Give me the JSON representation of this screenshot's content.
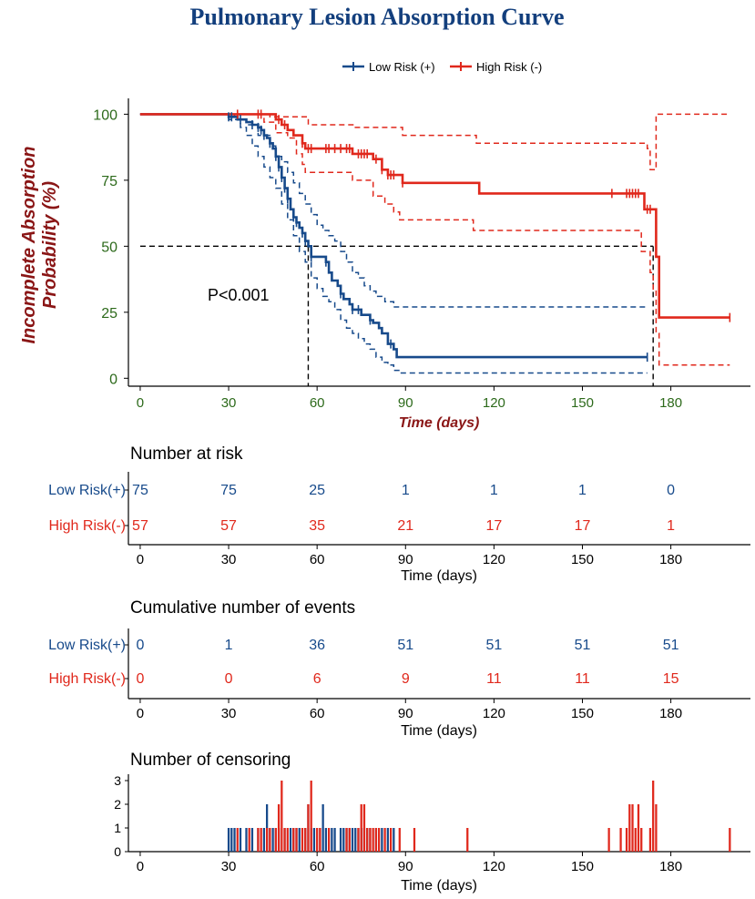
{
  "chart_data": {
    "type": "kaplan-meier",
    "title": "Pulmonary Lesion Absorption Curve",
    "legend": {
      "placement": "top",
      "entries": [
        "Low Risk (+)",
        "High Risk (-)"
      ]
    },
    "colors": {
      "low": "#174a8b",
      "high": "#e0281c",
      "title": "#133f7d",
      "ylabel": "#8a1616",
      "xlabel": "#8a1616",
      "ytick": "#2d6a1b",
      "xtick": "#2d6a1b"
    },
    "main_plot": {
      "xlabel": "Time (days)",
      "ylabel_line1": "Incomplete Absorption",
      "ylabel_line2": "Probability (%)",
      "xlim": [
        -4,
        207
      ],
      "ylim": [
        -3,
        106
      ],
      "xticks": [
        0,
        30,
        60,
        90,
        120,
        150,
        180
      ],
      "yticks": [
        0,
        25,
        50,
        75,
        100
      ],
      "xtick_labels": [
        "0",
        "30",
        "60",
        "90",
        "120",
        "150",
        "180"
      ],
      "ytick_labels": [
        "0",
        "25",
        "50",
        "75",
        "100"
      ],
      "annotation": "P<0.001",
      "median_line": {
        "y": 50,
        "x_low": 57,
        "x_high": 174
      },
      "series": [
        {
          "name": "Low Risk (+)",
          "key": "low",
          "survival": [
            [
              0,
              100
            ],
            [
              28,
              100
            ],
            [
              30,
              99
            ],
            [
              33,
              98
            ],
            [
              36,
              97
            ],
            [
              38,
              96
            ],
            [
              40,
              95
            ],
            [
              41,
              94
            ],
            [
              42,
              92
            ],
            [
              43,
              91
            ],
            [
              44,
              89
            ],
            [
              45,
              87
            ],
            [
              46,
              84
            ],
            [
              47,
              80
            ],
            [
              48,
              76
            ],
            [
              49,
              72
            ],
            [
              50,
              68
            ],
            [
              51,
              64
            ],
            [
              52,
              61
            ],
            [
              53,
              59
            ],
            [
              54,
              57
            ],
            [
              55,
              55
            ],
            [
              56,
              52
            ],
            [
              57,
              50
            ],
            [
              58,
              46
            ],
            [
              62,
              46
            ],
            [
              63,
              44
            ],
            [
              64,
              40
            ],
            [
              65,
              37
            ],
            [
              67,
              35
            ],
            [
              68,
              32
            ],
            [
              69,
              30
            ],
            [
              71,
              28
            ],
            [
              72,
              26
            ],
            [
              74,
              26
            ],
            [
              75,
              24
            ],
            [
              78,
              22
            ],
            [
              79,
              21
            ],
            [
              81,
              19
            ],
            [
              82,
              17
            ],
            [
              84,
              13
            ],
            [
              86,
              11
            ],
            [
              87,
              8
            ],
            [
              172,
              8
            ]
          ],
          "upper": [
            [
              0,
              100
            ],
            [
              28,
              100
            ],
            [
              32,
              98
            ],
            [
              36,
              96
            ],
            [
              40,
              92
            ],
            [
              44,
              88
            ],
            [
              46,
              84
            ],
            [
              48,
              82
            ],
            [
              50,
              78
            ],
            [
              52,
              74
            ],
            [
              54,
              70
            ],
            [
              56,
              66
            ],
            [
              58,
              62
            ],
            [
              60,
              58
            ],
            [
              62,
              56
            ],
            [
              64,
              54
            ],
            [
              66,
              52
            ],
            [
              68,
              48
            ],
            [
              70,
              44
            ],
            [
              72,
              40
            ],
            [
              74,
              38
            ],
            [
              76,
              35
            ],
            [
              78,
              33
            ],
            [
              80,
              31
            ],
            [
              83,
              29
            ],
            [
              86,
              27
            ],
            [
              88,
              27
            ],
            [
              172,
              27
            ]
          ],
          "lower": [
            [
              0,
              100
            ],
            [
              28,
              100
            ],
            [
              30,
              98
            ],
            [
              34,
              95
            ],
            [
              36,
              92
            ],
            [
              38,
              88
            ],
            [
              40,
              84
            ],
            [
              42,
              80
            ],
            [
              44,
              76
            ],
            [
              46,
              72
            ],
            [
              48,
              66
            ],
            [
              50,
              60
            ],
            [
              52,
              54
            ],
            [
              54,
              48
            ],
            [
              56,
              44
            ],
            [
              58,
              38
            ],
            [
              60,
              34
            ],
            [
              62,
              31
            ],
            [
              64,
              29
            ],
            [
              66,
              26
            ],
            [
              68,
              22
            ],
            [
              70,
              19
            ],
            [
              72,
              17
            ],
            [
              74,
              15
            ],
            [
              76,
              13
            ],
            [
              78,
              11
            ],
            [
              80,
              8
            ],
            [
              82,
              6
            ],
            [
              84,
              5
            ],
            [
              86,
              3
            ],
            [
              88,
              2
            ],
            [
              172,
              2
            ]
          ],
          "censor_x": [
            30,
            31,
            34,
            38,
            40,
            41,
            42,
            44,
            46,
            47,
            48,
            49,
            50,
            52,
            53,
            55,
            56,
            58,
            63,
            68,
            72,
            74,
            78,
            85,
            172
          ]
        },
        {
          "name": "High Risk (-)",
          "key": "high",
          "survival": [
            [
              0,
              100
            ],
            [
              45,
              100
            ],
            [
              46,
              98
            ],
            [
              48,
              96
            ],
            [
              50,
              94
            ],
            [
              52,
              92
            ],
            [
              55,
              89
            ],
            [
              56,
              87
            ],
            [
              71,
              87
            ],
            [
              72,
              85
            ],
            [
              78,
              85
            ],
            [
              79,
              83
            ],
            [
              81,
              83
            ],
            [
              82,
              79
            ],
            [
              84,
              77
            ],
            [
              88,
              77
            ],
            [
              89,
              74
            ],
            [
              114,
              74
            ],
            [
              115,
              70
            ],
            [
              170,
              70
            ],
            [
              171,
              64
            ],
            [
              174,
              64
            ],
            [
              175,
              46
            ],
            [
              176,
              23
            ],
            [
              200,
              23
            ]
          ],
          "upper": [
            [
              0,
              100
            ],
            [
              42,
              100
            ],
            [
              44,
              99
            ],
            [
              56,
              99
            ],
            [
              57,
              96
            ],
            [
              72,
              96
            ],
            [
              73,
              95
            ],
            [
              88,
              95
            ],
            [
              89,
              92
            ],
            [
              113,
              92
            ],
            [
              114,
              89
            ],
            [
              171,
              89
            ],
            [
              172,
              87
            ],
            [
              173,
              79
            ],
            [
              175,
              100
            ],
            [
              200,
              100
            ]
          ],
          "lower": [
            [
              0,
              100
            ],
            [
              40,
              100
            ],
            [
              42,
              97
            ],
            [
              46,
              93
            ],
            [
              50,
              91
            ],
            [
              53,
              85
            ],
            [
              55,
              81
            ],
            [
              56,
              78
            ],
            [
              71,
              78
            ],
            [
              72,
              75
            ],
            [
              78,
              75
            ],
            [
              79,
              69
            ],
            [
              82,
              69
            ],
            [
              83,
              66
            ],
            [
              86,
              63
            ],
            [
              88,
              60
            ],
            [
              110,
              60
            ],
            [
              113,
              56
            ],
            [
              169,
              56
            ],
            [
              170,
              48
            ],
            [
              173,
              40
            ],
            [
              174,
              33
            ],
            [
              175,
              17
            ],
            [
              176,
              5
            ],
            [
              200,
              5
            ]
          ],
          "censor_x": [
            33,
            40,
            41,
            47,
            49,
            55,
            57,
            58,
            63,
            64,
            66,
            68,
            70,
            71,
            74,
            75,
            76,
            77,
            80,
            82,
            84,
            85,
            86,
            89,
            160,
            165,
            166,
            167,
            168,
            169,
            172,
            173,
            200
          ]
        }
      ]
    },
    "number_at_risk": {
      "title": "Number at risk",
      "xlabel": "Time (days)",
      "times": [
        0,
        30,
        60,
        90,
        120,
        150,
        180
      ],
      "row_low_name": "Low Risk",
      "row_low_suffix": "(+)",
      "row_high_name": "High Risk",
      "row_high_suffix": "(-)",
      "low": [
        "75",
        "75",
        "25",
        "1",
        "1",
        "1",
        "0"
      ],
      "high": [
        "57",
        "57",
        "35",
        "21",
        "17",
        "17",
        "1"
      ]
    },
    "cumulative_events": {
      "title": "Cumulative number of events",
      "xlabel": "Time (days)",
      "times": [
        0,
        30,
        60,
        90,
        120,
        150,
        180
      ],
      "row_low_name": "Low Risk",
      "row_low_suffix": "(+)",
      "row_high_name": "High Risk",
      "row_high_suffix": "(-)",
      "low": [
        "0",
        "1",
        "36",
        "51",
        "51",
        "51",
        "51"
      ],
      "high": [
        "0",
        "0",
        "6",
        "9",
        "11",
        "11",
        "15"
      ]
    },
    "censoring": {
      "title": "Number of censoring",
      "xlabel": "Time (days)",
      "yticks": [
        0,
        1,
        2,
        3
      ],
      "ytick_labels": [
        "0",
        "1",
        "2",
        "3"
      ],
      "xtick_labels": [
        "0",
        "30",
        "60",
        "90",
        "120",
        "150",
        "180"
      ],
      "ylim": [
        0,
        3
      ],
      "low_counts": [
        [
          30,
          1
        ],
        [
          31,
          1
        ],
        [
          32,
          1
        ],
        [
          34,
          1
        ],
        [
          36,
          1
        ],
        [
          38,
          1
        ],
        [
          40,
          1
        ],
        [
          42,
          1
        ],
        [
          43,
          2
        ],
        [
          44,
          1
        ],
        [
          45,
          1
        ],
        [
          46,
          1
        ],
        [
          47,
          1
        ],
        [
          49,
          1
        ],
        [
          51,
          1
        ],
        [
          52,
          1
        ],
        [
          53,
          1
        ],
        [
          54,
          1
        ],
        [
          56,
          1
        ],
        [
          57,
          2
        ],
        [
          58,
          1
        ],
        [
          59,
          1
        ],
        [
          61,
          1
        ],
        [
          62,
          2
        ],
        [
          63,
          1
        ],
        [
          65,
          1
        ],
        [
          66,
          1
        ],
        [
          68,
          1
        ],
        [
          69,
          1
        ],
        [
          70,
          1
        ],
        [
          71,
          1
        ],
        [
          72,
          1
        ],
        [
          73,
          1
        ],
        [
          74,
          1
        ],
        [
          75,
          1
        ],
        [
          76,
          1
        ],
        [
          77,
          1
        ],
        [
          78,
          1
        ],
        [
          80,
          1
        ],
        [
          82,
          1
        ],
        [
          84,
          1
        ],
        [
          86,
          1
        ]
      ],
      "high_counts": [
        [
          33,
          1
        ],
        [
          37,
          1
        ],
        [
          40,
          1
        ],
        [
          41,
          1
        ],
        [
          43,
          1
        ],
        [
          44,
          1
        ],
        [
          46,
          1
        ],
        [
          47,
          2
        ],
        [
          48,
          3
        ],
        [
          49,
          1
        ],
        [
          50,
          1
        ],
        [
          52,
          1
        ],
        [
          53,
          1
        ],
        [
          55,
          1
        ],
        [
          56,
          1
        ],
        [
          57,
          2
        ],
        [
          58,
          3
        ],
        [
          60,
          1
        ],
        [
          61,
          1
        ],
        [
          64,
          1
        ],
        [
          70,
          1
        ],
        [
          71,
          1
        ],
        [
          74,
          1
        ],
        [
          75,
          2
        ],
        [
          76,
          2
        ],
        [
          77,
          1
        ],
        [
          78,
          1
        ],
        [
          79,
          1
        ],
        [
          80,
          1
        ],
        [
          81,
          1
        ],
        [
          83,
          1
        ],
        [
          85,
          1
        ],
        [
          88,
          1
        ],
        [
          93,
          1
        ],
        [
          111,
          1
        ],
        [
          159,
          1
        ],
        [
          163,
          1
        ],
        [
          165,
          1
        ],
        [
          166,
          2
        ],
        [
          167,
          2
        ],
        [
          168,
          1
        ],
        [
          169,
          2
        ],
        [
          170,
          1
        ],
        [
          173,
          1
        ],
        [
          174,
          3
        ],
        [
          175,
          2
        ],
        [
          200,
          1
        ]
      ]
    }
  }
}
